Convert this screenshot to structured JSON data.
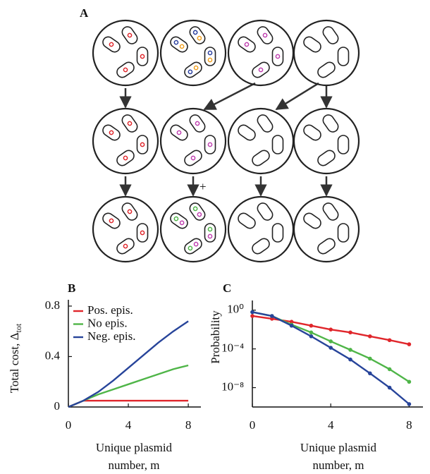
{
  "panel_a": {
    "label": "A",
    "plus": "+"
  },
  "chart_data": [
    {
      "type": "line",
      "label": "B",
      "ylabel": "Total cost, Δ",
      "ylabel_sub": "tot",
      "xlabel": [
        "Unique plasmid",
        "number, m"
      ],
      "x": [
        0,
        1,
        2,
        3,
        4,
        5,
        6,
        7,
        8
      ],
      "series": [
        {
          "name": "Pos. epis.",
          "color": "#e0262b",
          "values": [
            0,
            0.05,
            0.05,
            0.05,
            0.05,
            0.05,
            0.05,
            0.05,
            0.05
          ]
        },
        {
          "name": "No epis.",
          "color": "#4fb548",
          "values": [
            0,
            0.05,
            0.1,
            0.14,
            0.18,
            0.22,
            0.26,
            0.3,
            0.33
          ]
        },
        {
          "name": "Neg. epis.",
          "color": "#27449a",
          "values": [
            0,
            0.05,
            0.12,
            0.21,
            0.31,
            0.41,
            0.51,
            0.6,
            0.68
          ]
        }
      ],
      "xlim": [
        0,
        8.4
      ],
      "ylim": [
        0,
        0.85
      ],
      "xticks": [
        0,
        4,
        8
      ],
      "yticks": [
        0,
        0.4,
        0.8
      ],
      "markers": false,
      "legend": "upper left",
      "log_y": false
    },
    {
      "type": "line",
      "label": "C",
      "ylabel": "Probability",
      "xlabel": [
        "Unique plasmid",
        "number, m"
      ],
      "x": [
        0,
        1,
        2,
        3,
        4,
        5,
        6,
        7,
        8
      ],
      "series": [
        {
          "name": "Pos. epis.",
          "color": "#e0262b",
          "values": [
            0.25,
            0.13,
            0.063,
            0.025,
            0.01,
            0.005,
            0.002,
            0.0008,
            0.0003
          ]
        },
        {
          "name": "No epis.",
          "color": "#4fb548",
          "values": [
            0.63,
            0.25,
            0.032,
            0.005,
            0.0006,
            8e-05,
            1e-05,
            8e-07,
            4e-08
          ]
        },
        {
          "name": "Neg. epis.",
          "color": "#27449a",
          "values": [
            0.63,
            0.25,
            0.025,
            0.002,
            0.00013,
            8e-06,
            3e-07,
            1e-08,
            2e-10
          ]
        }
      ],
      "xlim": [
        0,
        8.4
      ],
      "ylim": [
        1e-10,
        10
      ],
      "xticks": [
        0,
        4,
        8
      ],
      "yticks": [
        {
          "value": 1,
          "label": "10⁰"
        },
        {
          "value": 0.0001,
          "label": "10⁻⁴"
        },
        {
          "value": 1e-08,
          "label": "10⁻⁸"
        }
      ],
      "markers": true,
      "log_y": true
    }
  ]
}
